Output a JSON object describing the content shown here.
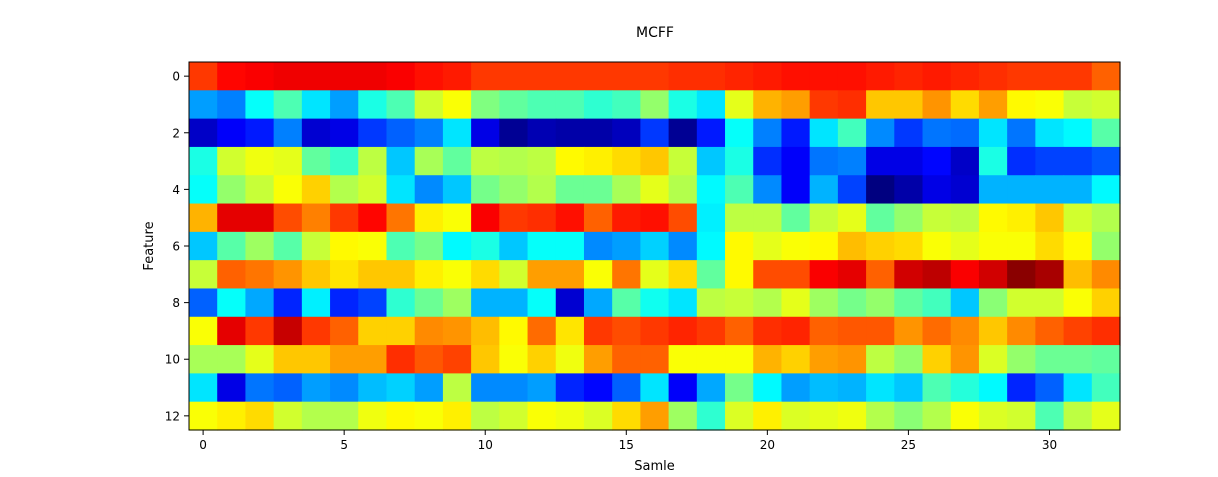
{
  "chart_data": {
    "type": "heatmap",
    "title": "MCFF",
    "xlabel": "Samle",
    "ylabel": "Feature",
    "colormap": "jet",
    "vmin": 0,
    "vmax": 1,
    "xlim": [
      -0.5,
      32.5
    ],
    "ylim": [
      12.5,
      -0.5
    ],
    "xticks": [
      0,
      5,
      10,
      15,
      20,
      25,
      30
    ],
    "yticks": [
      0,
      2,
      4,
      6,
      8,
      10,
      12
    ],
    "rows": 13,
    "cols": 33,
    "values": [
      [
        0.82,
        0.87,
        0.88,
        0.89,
        0.89,
        0.89,
        0.89,
        0.88,
        0.86,
        0.85,
        0.82,
        0.82,
        0.82,
        0.82,
        0.82,
        0.82,
        0.82,
        0.83,
        0.83,
        0.84,
        0.85,
        0.86,
        0.86,
        0.86,
        0.85,
        0.84,
        0.85,
        0.84,
        0.83,
        0.82,
        0.82,
        0.82,
        0.78
      ],
      [
        0.28,
        0.25,
        0.38,
        0.45,
        0.35,
        0.28,
        0.4,
        0.45,
        0.58,
        0.62,
        0.5,
        0.47,
        0.45,
        0.45,
        0.42,
        0.44,
        0.52,
        0.4,
        0.35,
        0.6,
        0.7,
        0.72,
        0.82,
        0.83,
        0.68,
        0.68,
        0.73,
        0.66,
        0.72,
        0.63,
        0.62,
        0.57,
        0.58
      ],
      [
        0.07,
        0.12,
        0.15,
        0.25,
        0.08,
        0.1,
        0.18,
        0.22,
        0.25,
        0.35,
        0.1,
        0.02,
        0.05,
        0.04,
        0.04,
        0.06,
        0.18,
        0.02,
        0.15,
        0.38,
        0.25,
        0.15,
        0.35,
        0.44,
        0.26,
        0.18,
        0.24,
        0.23,
        0.35,
        0.24,
        0.35,
        0.37,
        0.46
      ],
      [
        0.4,
        0.58,
        0.61,
        0.6,
        0.47,
        0.43,
        0.56,
        0.32,
        0.54,
        0.47,
        0.56,
        0.55,
        0.56,
        0.63,
        0.64,
        0.66,
        0.68,
        0.57,
        0.32,
        0.4,
        0.17,
        0.12,
        0.24,
        0.25,
        0.1,
        0.1,
        0.13,
        0.07,
        0.4,
        0.17,
        0.19,
        0.19,
        0.21
      ],
      [
        0.38,
        0.52,
        0.57,
        0.62,
        0.67,
        0.55,
        0.58,
        0.35,
        0.26,
        0.32,
        0.49,
        0.52,
        0.55,
        0.48,
        0.48,
        0.54,
        0.6,
        0.55,
        0.37,
        0.45,
        0.26,
        0.12,
        0.3,
        0.19,
        0.0,
        0.04,
        0.1,
        0.08,
        0.3,
        0.3,
        0.3,
        0.3,
        0.37
      ],
      [
        0.7,
        0.9,
        0.9,
        0.8,
        0.75,
        0.82,
        0.87,
        0.76,
        0.64,
        0.62,
        0.88,
        0.82,
        0.83,
        0.86,
        0.78,
        0.85,
        0.86,
        0.8,
        0.36,
        0.56,
        0.56,
        0.47,
        0.57,
        0.6,
        0.47,
        0.52,
        0.57,
        0.56,
        0.63,
        0.64,
        0.68,
        0.58,
        0.55
      ],
      [
        0.32,
        0.46,
        0.53,
        0.46,
        0.57,
        0.63,
        0.62,
        0.45,
        0.49,
        0.37,
        0.4,
        0.32,
        0.38,
        0.38,
        0.26,
        0.28,
        0.33,
        0.26,
        0.37,
        0.63,
        0.6,
        0.62,
        0.63,
        0.69,
        0.67,
        0.66,
        0.62,
        0.6,
        0.62,
        0.62,
        0.66,
        0.63,
        0.52
      ],
      [
        0.57,
        0.78,
        0.76,
        0.73,
        0.68,
        0.65,
        0.68,
        0.68,
        0.64,
        0.62,
        0.66,
        0.58,
        0.72,
        0.72,
        0.62,
        0.76,
        0.6,
        0.66,
        0.47,
        0.63,
        0.8,
        0.8,
        0.88,
        0.9,
        0.78,
        0.92,
        0.94,
        0.88,
        0.92,
        0.99,
        0.96,
        0.69,
        0.74
      ],
      [
        0.22,
        0.38,
        0.29,
        0.16,
        0.36,
        0.16,
        0.19,
        0.42,
        0.48,
        0.53,
        0.3,
        0.3,
        0.38,
        0.08,
        0.29,
        0.46,
        0.39,
        0.35,
        0.56,
        0.57,
        0.55,
        0.6,
        0.53,
        0.49,
        0.52,
        0.47,
        0.44,
        0.32,
        0.51,
        0.58,
        0.58,
        0.62,
        0.67
      ],
      [
        0.62,
        0.9,
        0.82,
        0.93,
        0.82,
        0.78,
        0.67,
        0.67,
        0.74,
        0.73,
        0.69,
        0.63,
        0.77,
        0.65,
        0.82,
        0.8,
        0.82,
        0.84,
        0.82,
        0.78,
        0.83,
        0.84,
        0.78,
        0.79,
        0.79,
        0.73,
        0.77,
        0.74,
        0.68,
        0.74,
        0.78,
        0.81,
        0.83
      ],
      [
        0.54,
        0.54,
        0.6,
        0.68,
        0.68,
        0.72,
        0.72,
        0.83,
        0.79,
        0.81,
        0.68,
        0.62,
        0.67,
        0.61,
        0.72,
        0.78,
        0.78,
        0.62,
        0.62,
        0.62,
        0.7,
        0.67,
        0.72,
        0.73,
        0.56,
        0.52,
        0.67,
        0.73,
        0.59,
        0.52,
        0.48,
        0.48,
        0.47
      ],
      [
        0.35,
        0.1,
        0.24,
        0.22,
        0.28,
        0.26,
        0.31,
        0.33,
        0.28,
        0.56,
        0.26,
        0.26,
        0.28,
        0.16,
        0.13,
        0.22,
        0.35,
        0.12,
        0.29,
        0.49,
        0.37,
        0.28,
        0.31,
        0.3,
        0.35,
        0.32,
        0.45,
        0.41,
        0.37,
        0.16,
        0.22,
        0.35,
        0.44
      ],
      [
        0.62,
        0.64,
        0.66,
        0.58,
        0.55,
        0.55,
        0.61,
        0.63,
        0.62,
        0.64,
        0.56,
        0.58,
        0.62,
        0.61,
        0.59,
        0.66,
        0.72,
        0.53,
        0.42,
        0.59,
        0.64,
        0.59,
        0.6,
        0.61,
        0.55,
        0.51,
        0.55,
        0.62,
        0.59,
        0.58,
        0.45,
        0.56,
        0.6
      ]
    ]
  }
}
